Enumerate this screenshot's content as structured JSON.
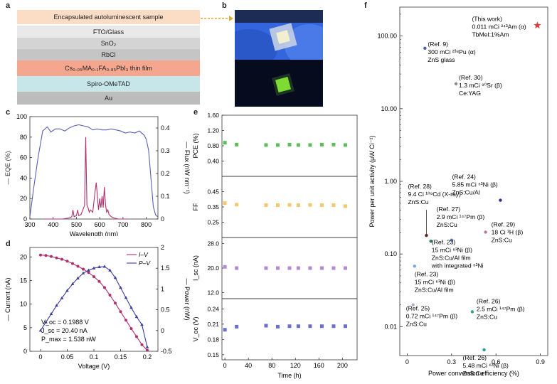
{
  "panels": {
    "a": "a",
    "b": "b",
    "c": "c",
    "d": "d",
    "e": "e",
    "f": "f"
  },
  "device_stack": {
    "layers": [
      {
        "label": "Encapsulated autoluminescent sample",
        "color": "#fbdcc4"
      },
      {
        "label": "FTO/Glass",
        "color": "#e9e9e9"
      },
      {
        "label": "SnO₂",
        "color": "#d4d4d4"
      },
      {
        "label": "RbCl",
        "color": "#c5c5c5"
      },
      {
        "label": "Cs₀.₀₅MA₀.₁FA₀.₈₅PbI₃ thin film",
        "color": "#f4a78e"
      },
      {
        "label": "Spiro-OMeTAD",
        "color": "#c6e6ea"
      },
      {
        "label": "Au",
        "color": "#bcbcbc"
      }
    ]
  },
  "photo": {
    "top_color": "#3f6fe0",
    "bottom_color": "#050a20",
    "sample_color": "#f1efcf",
    "glow_color": "#7ddb32"
  },
  "chart_data": [
    {
      "id": "c",
      "type": "line",
      "xlabel": "Wavelength (nm)",
      "ylabel_left": "EQE (%)",
      "ylabel_right": "Flux (nW nm⁻¹)",
      "xlim": [
        300,
        850
      ],
      "ylim_left": [
        0,
        100
      ],
      "ylim_right": [
        0,
        0.45
      ],
      "xticks": [
        300,
        400,
        500,
        600,
        700,
        800
      ],
      "yticks_left": [
        0,
        20,
        40,
        60,
        80,
        100
      ],
      "yticks_right": [
        0,
        0.1,
        0.2,
        0.3,
        0.4
      ],
      "series": [
        {
          "name": "EQE (%)",
          "color": "#5b5fb4",
          "axis": "left",
          "x": [
            300,
            315,
            335,
            355,
            375,
            390,
            410,
            430,
            450,
            470,
            490,
            510,
            530,
            550,
            570,
            590,
            610,
            630,
            650,
            670,
            690,
            710,
            730,
            750,
            770,
            790,
            800,
            810,
            820,
            830,
            840,
            850
          ],
          "y": [
            2,
            28,
            60,
            86,
            90,
            85,
            88,
            88,
            86,
            89,
            91,
            92,
            91,
            90,
            87,
            88,
            87,
            87,
            88,
            87,
            86,
            84,
            85,
            84,
            86,
            82,
            78,
            67,
            40,
            12,
            4,
            2
          ]
        },
        {
          "name": "Flux (nW nm⁻¹)",
          "color": "#b0306f",
          "axis": "right",
          "x": [
            360,
            400,
            440,
            470,
            480,
            485,
            490,
            500,
            505,
            510,
            520,
            535,
            540,
            545,
            550,
            555,
            560,
            570,
            580,
            585,
            590,
            595,
            600,
            605,
            610,
            615,
            620,
            625,
            630,
            635,
            640,
            650,
            660,
            680,
            700,
            720
          ],
          "y": [
            0,
            0,
            0,
            0.005,
            0.01,
            0.04,
            0.01,
            0.015,
            0.04,
            0.015,
            0.02,
            0.06,
            0.36,
            0.06,
            0.05,
            0.03,
            0.04,
            0.03,
            0.12,
            0.16,
            0.1,
            0.04,
            0.09,
            0.05,
            0.1,
            0.05,
            0.14,
            0.06,
            0.03,
            0.04,
            0.02,
            0.01,
            0.005,
            0,
            0,
            0
          ]
        }
      ]
    },
    {
      "id": "d",
      "type": "line",
      "xlabel": "Voltage (V)",
      "ylabel_left": "Current (nA)",
      "ylabel_right": "Power (nW)",
      "xlim": [
        -0.02,
        0.22
      ],
      "ylim_left": [
        0,
        22
      ],
      "ylim_right": [
        -0.5,
        2.0
      ],
      "xticks": [
        0,
        0.05,
        0.1,
        0.15,
        0.2
      ],
      "yticks_left": [
        0,
        5,
        10,
        15,
        20
      ],
      "yticks_right": [
        -0.5,
        0,
        0.5,
        1.0,
        1.5,
        2.0
      ],
      "series": [
        {
          "name": "I–V",
          "color": "#b0306f",
          "axis": "left",
          "x": [
            0,
            0.01,
            0.02,
            0.03,
            0.04,
            0.05,
            0.06,
            0.07,
            0.08,
            0.09,
            0.1,
            0.11,
            0.12,
            0.13,
            0.14,
            0.15,
            0.16,
            0.17,
            0.18,
            0.19,
            0.2
          ],
          "y": [
            20.4,
            20.3,
            20.1,
            19.8,
            19.5,
            19.1,
            18.6,
            18.0,
            17.4,
            16.7,
            15.8,
            14.8,
            13.5,
            11.9,
            10.2,
            8.4,
            6.6,
            4.8,
            3.1,
            1.4,
            0.2
          ]
        },
        {
          "name": "P–V",
          "color": "#3c3d9e",
          "axis": "right",
          "x": [
            0,
            0.01,
            0.02,
            0.03,
            0.04,
            0.05,
            0.06,
            0.07,
            0.08,
            0.09,
            0.1,
            0.11,
            0.12,
            0.13,
            0.14,
            0.15,
            0.16,
            0.17,
            0.18,
            0.19,
            0.2
          ],
          "y": [
            0.0,
            0.2,
            0.4,
            0.6,
            0.78,
            0.96,
            1.12,
            1.26,
            1.38,
            1.45,
            1.5,
            1.53,
            1.54,
            1.45,
            1.27,
            1.03,
            0.79,
            0.55,
            0.33,
            0.14,
            -0.4
          ]
        }
      ],
      "legend": [
        "I–V",
        "P–V"
      ],
      "annotations": [
        "V_oc = 0.1988 V",
        "J_sc = 20.40 nA",
        "P_max = 1.538 nW"
      ]
    },
    {
      "id": "e",
      "type": "scatter",
      "xlabel": "Time (h)",
      "xlim": [
        -5,
        225
      ],
      "xticks": [
        0,
        40,
        80,
        120,
        160,
        200
      ],
      "x": [
        0,
        20,
        70,
        90,
        110,
        125,
        145,
        165,
        185,
        205
      ],
      "subplots": [
        {
          "ylabel": "PCE (%)",
          "ylim": [
            0,
            1.6
          ],
          "yticks": [
            0.4,
            0.8,
            1.2,
            1.6
          ],
          "ytick_labels": [
            "0.40",
            "0.80",
            "1.20",
            "1.60"
          ],
          "color": "#5cbe5c",
          "y": [
            0.88,
            0.83,
            0.82,
            0.82,
            0.83,
            0.82,
            0.82,
            0.83,
            0.83,
            0.82
          ]
        },
        {
          "ylabel": "FF",
          "ylim": [
            0.15,
            0.55
          ],
          "yticks": [
            0.25,
            0.35,
            0.45
          ],
          "ytick_labels": [
            "0.25",
            "0.35",
            "0.45"
          ],
          "color": "#f6c76d",
          "y": [
            0.375,
            0.365,
            0.362,
            0.362,
            0.363,
            0.362,
            0.363,
            0.362,
            0.362,
            0.355
          ]
        },
        {
          "ylabel": "I_sc (nA)",
          "ylim": [
            10,
            30
          ],
          "yticks": [
            12,
            20,
            28
          ],
          "ytick_labels": [
            "12.0",
            "20.0",
            "28.0"
          ],
          "color": "#b68ad3",
          "y": [
            20.4,
            20.0,
            20.0,
            20.0,
            20.0,
            20.0,
            20.0,
            20.0,
            20.0,
            20.0
          ]
        },
        {
          "ylabel": "V_oc (V)",
          "ylim": [
            0.14,
            0.26
          ],
          "yticks": [
            0.15,
            0.18,
            0.21,
            0.24
          ],
          "ytick_labels": [
            "0.15",
            "0.18",
            "0.21",
            "0.24"
          ],
          "color": "#6a70cb",
          "y": [
            0.199,
            0.205,
            0.207,
            0.205,
            0.206,
            0.206,
            0.206,
            0.206,
            0.206,
            0.206
          ]
        }
      ]
    },
    {
      "id": "f",
      "type": "scatter",
      "xlabel": "Power conversion efficiency (%)",
      "ylabel": "Power per unit activity (μW Ci⁻¹)",
      "xlim": [
        -0.05,
        0.95
      ],
      "ylim": [
        0.004,
        250
      ],
      "yscale": "log",
      "xticks": [
        0,
        0.3,
        0.6,
        0.9
      ],
      "xtick_labels": [
        "0",
        "0.3",
        "0.6",
        "0.9"
      ],
      "yticks": [
        0.01,
        0.1,
        1,
        10,
        100
      ],
      "ytick_labels": [
        "0.01",
        "0.10",
        "1.00",
        "10.00",
        "100.00"
      ],
      "points": [
        {
          "x": 0.12,
          "y": 68,
          "color": "#4a5fa8",
          "lines": [
            "(Ref. 9)",
            "300 mCi ²³⁸Pu (α)",
            "ZnS glass"
          ]
        },
        {
          "x": 0.88,
          "y": 140,
          "color": "#e23b3b",
          "marker": "star",
          "lines": [
            "(This work)",
            "0.011 mCi ²⁴³Am (α)",
            "TbMeI:1%Am"
          ]
        },
        {
          "x": 0.33,
          "y": 22,
          "color": "#8a8a8a",
          "lines": [
            "(Ref. 30)",
            "1.3 mCi ⁹⁰Sr (β)",
            "Ce:YAG"
          ]
        },
        {
          "x": 0.63,
          "y": 0.55,
          "color": "#2d2f8f",
          "lines": [
            "(Ref. 24)",
            "5.85 mCi ⁶³Ni (β)",
            "ZnS:Cu/Al"
          ]
        },
        {
          "x": 0.13,
          "y": 0.18,
          "color": "#6b1f1f",
          "lines": [
            "(Ref. 28)",
            "9.4 Ci ¹⁰⁹Cd (X-ray)",
            "ZnS:Cu"
          ]
        },
        {
          "x": 0.16,
          "y": 0.15,
          "color": "#2e7d5b",
          "lines": [
            "(Ref. 27)",
            "2.9 mCi ¹⁴⁷Pm (β)",
            "ZnS:Cu"
          ]
        },
        {
          "x": 0.53,
          "y": 0.2,
          "color": "#b27aa5",
          "lines": [
            "(Ref. 29)",
            "18 Ci ³H (β)",
            "ZnS:Cu"
          ]
        },
        {
          "x": 0.3,
          "y": 0.155,
          "color": "#5e7fb8",
          "lines": [
            "(Ref. 23)",
            "15 mCi ⁶³Ni (β)",
            "ZnS:Cu/Al film",
            "with integrated ⁶³Ni"
          ]
        },
        {
          "x": 0.05,
          "y": 0.068,
          "color": "#7aa3d6",
          "lines": [
            "(Ref. 23)",
            "15 mCi ⁶³Ni (β)",
            "ZnS:Cu/Al film"
          ]
        },
        {
          "x": 0.04,
          "y": 0.02,
          "color": "#aab3c7",
          "lines": [
            "(Ref. 25)",
            "0.72 mCi ¹⁴⁷Pm (β)",
            "ZnS:Cu"
          ]
        },
        {
          "x": 0.44,
          "y": 0.016,
          "color": "#3aa47d",
          "lines": [
            "(Ref. 26)",
            "2.5 mCi ¹⁴⁷Pm (β)",
            "ZnS:Cu"
          ]
        },
        {
          "x": 0.52,
          "y": 0.0048,
          "color": "#2a9c8f",
          "lines": [
            "(Ref. 26)",
            "5.48 mCi ⁶³Ni (β)",
            "ZnS:Cu"
          ]
        }
      ]
    }
  ]
}
